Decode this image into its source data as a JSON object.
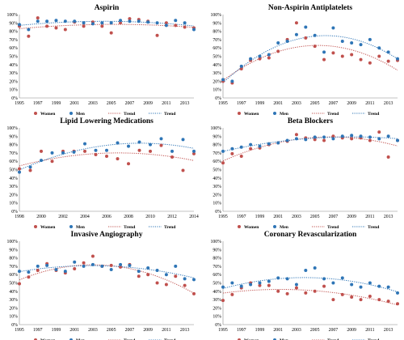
{
  "colors": {
    "women": "#C0504D",
    "men": "#2E75B6"
  },
  "legend": {
    "women": "Women",
    "men": "Men",
    "trend_women": "Trend",
    "trend_men": "Trend"
  },
  "chart_data": [
    {
      "type": "scatter",
      "title": "Aspirin",
      "xlim": [
        1995,
        2014
      ],
      "ylim": [
        0,
        100
      ],
      "x_ticks": [
        1995,
        1997,
        1999,
        2001,
        2003,
        2005,
        2007,
        2009,
        2011,
        2013
      ],
      "y_ticks": [
        "0%",
        "10%",
        "20%",
        "30%",
        "40%",
        "50%",
        "60%",
        "70%",
        "80%",
        "90%",
        "100%"
      ],
      "series": [
        {
          "name": "Women",
          "x": [
            1995,
            1996,
            1997,
            1998,
            1999,
            2000,
            2001,
            2002,
            2003,
            2004,
            2005,
            2006,
            2007,
            2008,
            2009,
            2010,
            2011,
            2012,
            2013,
            2014
          ],
          "y": [
            86,
            74,
            96,
            86,
            84,
            82,
            91,
            86,
            91,
            86,
            78,
            90,
            95,
            94,
            92,
            75,
            90,
            87,
            85,
            84
          ]
        },
        {
          "name": "Men",
          "x": [
            1995,
            1996,
            1997,
            1998,
            1999,
            2000,
            2001,
            2002,
            2003,
            2004,
            2005,
            2006,
            2007,
            2008,
            2009,
            2010,
            2011,
            2012,
            2013,
            2014
          ],
          "y": [
            88,
            82,
            92,
            92,
            93,
            92,
            92,
            90,
            89,
            90,
            90,
            93,
            92,
            92,
            91,
            90,
            87,
            93,
            90,
            82
          ]
        }
      ]
    },
    {
      "type": "scatter",
      "title": "Non-Aspirin Antiplatelets",
      "xlim": [
        1995,
        2014
      ],
      "ylim": [
        0,
        100
      ],
      "x_ticks": [
        1995,
        1997,
        1999,
        2001,
        2003,
        2005,
        2007,
        2009,
        2011,
        2013
      ],
      "y_ticks": [
        "0%",
        "10%",
        "20%",
        "30%",
        "40%",
        "50%",
        "60%",
        "70%",
        "80%",
        "90%",
        "100%"
      ],
      "series": [
        {
          "name": "Women",
          "x": [
            1995,
            1996,
            1997,
            1998,
            1999,
            2000,
            2001,
            2002,
            2003,
            2004,
            2005,
            2006,
            2007,
            2008,
            2009,
            2010,
            2011,
            2012,
            2013,
            2014
          ],
          "y": [
            20,
            18,
            35,
            45,
            47,
            48,
            56,
            70,
            90,
            72,
            62,
            46,
            54,
            50,
            52,
            46,
            42,
            50,
            44,
            45
          ]
        },
        {
          "name": "Men",
          "x": [
            1995,
            1996,
            1997,
            1998,
            1999,
            2000,
            2001,
            2002,
            2003,
            2004,
            2005,
            2006,
            2007,
            2008,
            2009,
            2010,
            2011,
            2012,
            2013,
            2014
          ],
          "y": [
            22,
            20,
            38,
            47,
            50,
            52,
            66,
            68,
            76,
            85,
            75,
            55,
            84,
            68,
            66,
            64,
            70,
            60,
            55,
            47
          ]
        }
      ]
    },
    {
      "type": "scatter",
      "title": "Lipid Lowering Medications",
      "xlim": [
        1998,
        2014
      ],
      "ylim": [
        0,
        100
      ],
      "x_ticks": [
        1998,
        2000,
        2002,
        2004,
        2006,
        2008,
        2010,
        2012,
        2014
      ],
      "y_ticks": [
        "0%",
        "10%",
        "20%",
        "30%",
        "40%",
        "50%",
        "60%",
        "70%",
        "80%",
        "90%",
        "100%"
      ],
      "series": [
        {
          "name": "Women",
          "x": [
            1998,
            1999,
            2000,
            2001,
            2002,
            2003,
            2004,
            2005,
            2006,
            2007,
            2008,
            2009,
            2010,
            2011,
            2012,
            2013,
            2014
          ],
          "y": [
            51,
            49,
            72,
            60,
            72,
            72,
            72,
            68,
            66,
            63,
            57,
            73,
            72,
            79,
            65,
            49,
            69
          ]
        },
        {
          "name": "Men",
          "x": [
            1998,
            1999,
            2000,
            2001,
            2002,
            2003,
            2004,
            2005,
            2006,
            2007,
            2008,
            2009,
            2010,
            2011,
            2012,
            2013,
            2014
          ],
          "y": [
            47,
            53,
            61,
            70,
            70,
            71,
            81,
            73,
            73,
            82,
            78,
            83,
            80,
            87,
            72,
            86,
            72
          ]
        }
      ]
    },
    {
      "type": "scatter",
      "title": "Beta Blockers",
      "xlim": [
        1995,
        2014
      ],
      "ylim": [
        0,
        100
      ],
      "x_ticks": [
        1995,
        1997,
        1999,
        2001,
        2003,
        2005,
        2007,
        2009,
        2011,
        2013
      ],
      "y_ticks": [
        "0%",
        "10%",
        "20%",
        "30%",
        "40%",
        "50%",
        "60%",
        "70%",
        "80%",
        "90%",
        "100%"
      ],
      "series": [
        {
          "name": "Women",
          "x": [
            1995,
            1996,
            1997,
            1998,
            1999,
            2000,
            2001,
            2002,
            2003,
            2004,
            2005,
            2006,
            2007,
            2008,
            2009,
            2010,
            2011,
            2012,
            2013,
            2014
          ],
          "y": [
            58,
            69,
            66,
            75,
            76,
            80,
            82,
            84,
            92,
            88,
            86,
            85,
            90,
            88,
            87,
            88,
            85,
            95,
            65,
            85
          ]
        },
        {
          "name": "Men",
          "x": [
            1995,
            1996,
            1997,
            1998,
            1999,
            2000,
            2001,
            2002,
            2003,
            2004,
            2005,
            2006,
            2007,
            2008,
            2009,
            2010,
            2011,
            2012,
            2013,
            2014
          ],
          "y": [
            72,
            75,
            77,
            80,
            78,
            81,
            82,
            85,
            87,
            86,
            89,
            89,
            87,
            90,
            91,
            90,
            89,
            87,
            90,
            85
          ]
        }
      ]
    },
    {
      "type": "scatter",
      "title": "Invasive Angiography",
      "xlim": [
        1995,
        2014
      ],
      "ylim": [
        0,
        100
      ],
      "x_ticks": [
        1995,
        1997,
        1999,
        2001,
        2003,
        2005,
        2007,
        2009,
        2011,
        2013
      ],
      "y_ticks": [
        "0%",
        "10%",
        "20%",
        "30%",
        "40%",
        "50%",
        "60%",
        "70%",
        "80%",
        "90%",
        "100%"
      ],
      "series": [
        {
          "name": "Women",
          "x": [
            1995,
            1996,
            1997,
            1998,
            1999,
            2000,
            2001,
            2002,
            2003,
            2004,
            2005,
            2006,
            2007,
            2008,
            2009,
            2010,
            2011,
            2012,
            2013,
            2014
          ],
          "y": [
            49,
            57,
            65,
            73,
            65,
            62,
            67,
            74,
            82,
            70,
            71,
            69,
            72,
            58,
            60,
            50,
            48,
            58,
            47,
            37
          ]
        },
        {
          "name": "Men",
          "x": [
            1995,
            1996,
            1997,
            1998,
            1999,
            2000,
            2001,
            2002,
            2003,
            2004,
            2005,
            2006,
            2007,
            2008,
            2009,
            2010,
            2011,
            2012,
            2013,
            2014
          ],
          "y": [
            64,
            63,
            70,
            71,
            66,
            64,
            75,
            70,
            72,
            70,
            66,
            72,
            71,
            64,
            68,
            65,
            60,
            70,
            55,
            54
          ]
        }
      ]
    },
    {
      "type": "scatter",
      "title": "Coronary Revascularization",
      "xlim": [
        1995,
        2014
      ],
      "ylim": [
        0,
        100
      ],
      "x_ticks": [
        1995,
        1997,
        1999,
        2001,
        2003,
        2005,
        2007,
        2009,
        2011,
        2013
      ],
      "y_ticks": [
        "0%",
        "10%",
        "20%",
        "30%",
        "40%",
        "50%",
        "60%",
        "70%",
        "80%",
        "90%",
        "100%"
      ],
      "series": [
        {
          "name": "Women",
          "x": [
            1995,
            1996,
            1997,
            1998,
            1999,
            2000,
            2001,
            2002,
            2003,
            2004,
            2005,
            2006,
            2007,
            2008,
            2009,
            2010,
            2011,
            2012,
            2013,
            2014
          ],
          "y": [
            29,
            36,
            44,
            50,
            47,
            47,
            40,
            37,
            44,
            38,
            40,
            46,
            30,
            36,
            33,
            30,
            34,
            30,
            28,
            25
          ]
        },
        {
          "name": "Men",
          "x": [
            1995,
            1996,
            1997,
            1998,
            1999,
            2000,
            2001,
            2002,
            2003,
            2004,
            2005,
            2006,
            2007,
            2008,
            2009,
            2010,
            2011,
            2012,
            2013,
            2014
          ],
          "y": [
            45,
            50,
            46,
            48,
            50,
            52,
            56,
            55,
            48,
            65,
            68,
            55,
            50,
            56,
            48,
            45,
            50,
            46,
            45,
            38
          ]
        }
      ]
    }
  ]
}
